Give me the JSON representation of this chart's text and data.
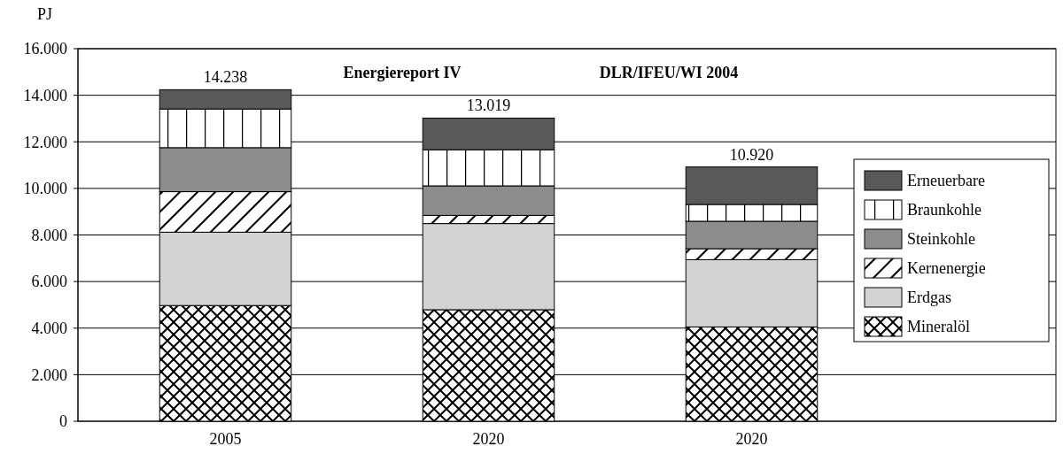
{
  "chart_data": {
    "type": "bar",
    "stacked": true,
    "ylabel": "PJ",
    "categories": [
      "2005",
      "2020",
      "2020"
    ],
    "series": [
      {
        "name": "Mineralöl",
        "color": "#000000",
        "values": [
          4970,
          4790,
          4050
        ]
      },
      {
        "name": "Erdgas",
        "color": "#d3d3d3",
        "values": [
          3150,
          3700,
          2890
        ]
      },
      {
        "name": "Kernenergie",
        "color": "#000000",
        "values": [
          1740,
          350,
          470
        ]
      },
      {
        "name": "Steinkohle",
        "color": "#8c8c8c",
        "values": [
          1890,
          1270,
          1180
        ]
      },
      {
        "name": "Braunkohle",
        "color": "#000000",
        "values": [
          1660,
          1550,
          720
        ]
      },
      {
        "name": "Erneuerbare",
        "color": "#595959",
        "values": [
          828,
          1359,
          1610
        ]
      }
    ],
    "totals": [
      "14.238",
      "13.019",
      "10.920"
    ],
    "ylim": [
      0,
      16000
    ],
    "yticks": [
      {
        "value": 0,
        "label": "0"
      },
      {
        "value": 2000,
        "label": "2.000"
      },
      {
        "value": 4000,
        "label": "4.000"
      },
      {
        "value": 6000,
        "label": "6.000"
      },
      {
        "value": 8000,
        "label": "8.000"
      },
      {
        "value": 10000,
        "label": "10.000"
      },
      {
        "value": 12000,
        "label": "12.000"
      },
      {
        "value": 14000,
        "label": "14.000"
      },
      {
        "value": 16000,
        "label": "16.000"
      }
    ],
    "grid": "y",
    "legend": "right",
    "annotations": [
      "Energiereport IV",
      "DLR/IFEU/WI 2004"
    ]
  }
}
